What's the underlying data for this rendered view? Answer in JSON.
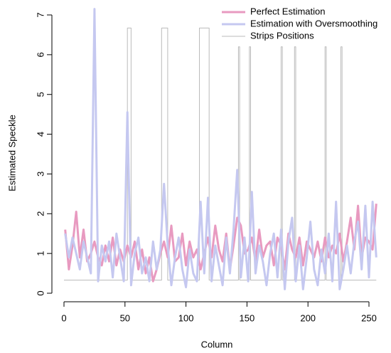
{
  "chart_data": {
    "type": "line",
    "x_label": "Column",
    "y_label": "Estimated Speckle",
    "x": [
      1,
      4,
      7,
      10,
      13,
      16,
      19,
      22,
      25,
      28,
      31,
      34,
      37,
      40,
      43,
      46,
      49,
      52,
      55,
      58,
      61,
      64,
      67,
      70,
      73,
      76,
      79,
      82,
      85,
      88,
      91,
      94,
      97,
      100,
      103,
      106,
      109,
      112,
      115,
      118,
      121,
      124,
      127,
      130,
      133,
      136,
      139,
      142,
      145,
      148,
      151,
      154,
      157,
      160,
      163,
      166,
      169,
      172,
      175,
      178,
      181,
      184,
      187,
      190,
      193,
      196,
      199,
      202,
      205,
      208,
      211,
      214,
      217,
      220,
      223,
      226,
      229,
      232,
      235,
      238,
      241,
      244,
      247,
      250,
      253,
      256
    ],
    "series": [
      {
        "name": "Perfect Estimation",
        "color": "#e89ac0",
        "values": [
          1.6,
          0.6,
          1.2,
          2.05,
          0.9,
          1.6,
          0.8,
          1.0,
          1.3,
          0.9,
          0.7,
          1.2,
          0.8,
          1.4,
          0.7,
          1.1,
          0.8,
          1.2,
          0.9,
          1.3,
          0.6,
          1.1,
          0.5,
          0.9,
          0.3,
          0.6,
          1.0,
          1.3,
          0.9,
          1.7,
          0.8,
          0.9,
          1.5,
          0.7,
          1.3,
          0.9,
          1.1,
          0.6,
          1.0,
          1.4,
          0.9,
          1.7,
          1.1,
          0.8,
          1.5,
          0.6,
          1.2,
          1.9,
          1.7,
          1.0,
          1.1,
          1.4,
          0.8,
          1.6,
          0.9,
          1.2,
          1.3,
          0.7,
          1.4,
          1.2,
          0.6,
          1.5,
          1.1,
          0.9,
          1.4,
          0.7,
          1.3,
          1.1,
          0.9,
          1.3,
          0.8,
          1.4,
          0.9,
          1.2,
          1.0,
          1.5,
          0.8,
          1.3,
          1.9,
          1.1,
          2.2,
          0.9,
          1.4,
          1.3,
          1.1,
          2.25
        ]
      },
      {
        "name": "Estimation with Oversmoothing",
        "color": "#c5c8f0",
        "values": [
          1.5,
          0.9,
          1.4,
          1.0,
          0.6,
          1.3,
          0.9,
          0.5,
          7.15,
          0.3,
          1.2,
          0.8,
          1.3,
          0.4,
          1.5,
          0.9,
          0.3,
          4.55,
          0.2,
          1.0,
          1.4,
          0.5,
          0.9,
          0.3,
          1.3,
          0.6,
          1.1,
          2.75,
          1.2,
          0.2,
          0.9,
          1.4,
          0.6,
          0.15,
          1.1,
          0.5,
          0.3,
          2.3,
          0.5,
          2.4,
          0.3,
          1.2,
          0.7,
          0.2,
          1.4,
          0.5,
          1.6,
          3.1,
          0.4,
          1.4,
          0.3,
          2.55,
          0.5,
          1.2,
          0.8,
          0.2,
          1.0,
          1.5,
          0.4,
          1.6,
          0.1,
          1.3,
          1.9,
          0.3,
          1.2,
          0.1,
          0.9,
          1.8,
          0.6,
          0.2,
          1.1,
          0.5,
          1.5,
          0.3,
          2.3,
          0.1,
          0.6,
          1.2,
          0.5,
          1.3,
          1.8,
          0.6,
          2.2,
          0.4,
          2.3,
          0.9
        ]
      },
      {
        "name": "Strips Positions",
        "color": "#bbbbbb",
        "x": [
          0,
          52,
          52,
          55,
          55,
          80,
          80,
          85,
          85,
          111,
          111,
          119,
          119,
          143,
          143,
          144,
          144,
          152,
          152,
          153,
          153,
          178,
          178,
          179,
          179,
          189,
          189,
          190,
          190,
          214,
          214,
          215,
          215,
          227,
          227,
          228,
          228,
          256
        ],
        "values": [
          0.33,
          0.33,
          6.67,
          6.67,
          0.33,
          0.33,
          6.67,
          6.67,
          0.33,
          0.33,
          6.67,
          6.67,
          0.33,
          0.33,
          6.2,
          6.2,
          0.33,
          0.33,
          6.2,
          6.2,
          0.33,
          0.33,
          6.2,
          6.2,
          0.33,
          0.33,
          6.2,
          6.2,
          0.33,
          0.33,
          6.2,
          6.2,
          0.33,
          0.33,
          6.2,
          6.2,
          0.33,
          0.33
        ]
      }
    ],
    "xlim": [
      0,
      250
    ],
    "xticks": [
      0,
      50,
      100,
      150,
      200,
      250
    ],
    "ylim": [
      0,
      7
    ],
    "yticks": [
      0,
      1,
      2,
      3,
      4,
      5,
      6,
      7
    ],
    "legend": "top-right"
  }
}
